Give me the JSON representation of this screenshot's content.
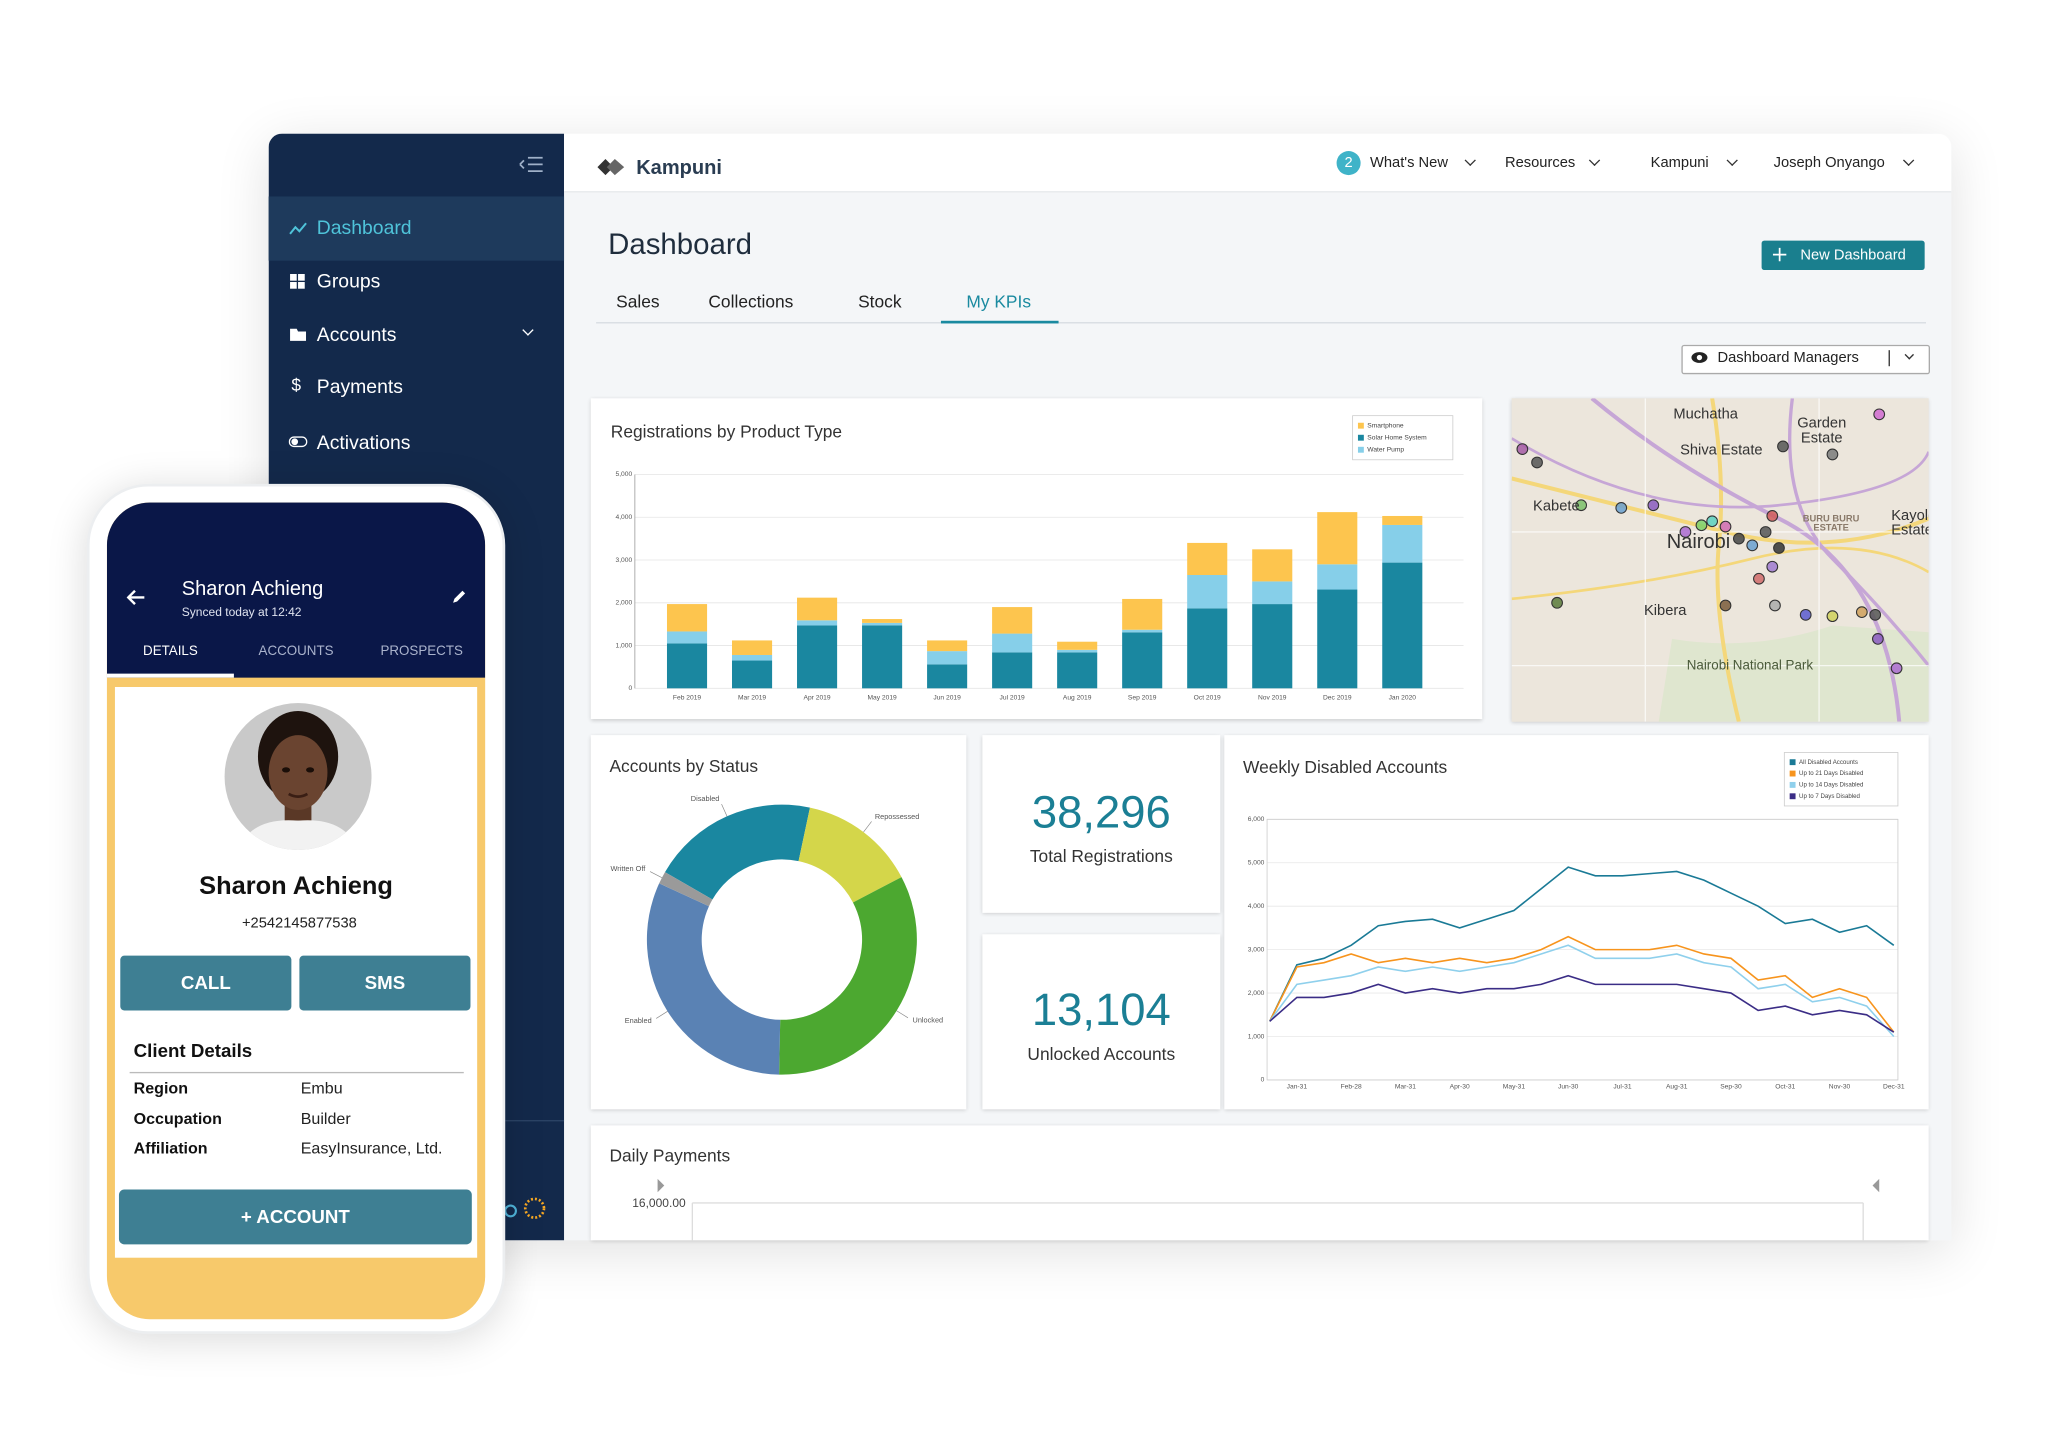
{
  "chart_data": [
    {
      "type": "bar",
      "title": "Registrations by Product Type",
      "categories": [
        "Feb 2019",
        "Mar 2019",
        "Apr 2019",
        "May 2019",
        "Jun 2019",
        "Jul 2019",
        "Aug 2019",
        "Sep 2019",
        "Oct 2019",
        "Nov 2019",
        "Dec 2019",
        "Jan 2020"
      ],
      "series": [
        {
          "name": "Smartphone",
          "color": "#fdc54e",
          "values": [
            640,
            340,
            530,
            90,
            250,
            620,
            190,
            720,
            750,
            750,
            1220,
            210
          ]
        },
        {
          "name": "Solar Home System",
          "color": "#1a87a0",
          "values": [
            1050,
            650,
            1470,
            1470,
            560,
            840,
            840,
            1310,
            1870,
            1970,
            2310,
            2940
          ]
        },
        {
          "name": "Water Pump",
          "color": "#86cfe9",
          "values": [
            280,
            130,
            120,
            60,
            310,
            440,
            60,
            60,
            780,
            530,
            590,
            880
          ]
        }
      ],
      "stack_order": [
        1,
        2,
        0
      ],
      "ylim": [
        0,
        5000
      ],
      "yticks": [
        0,
        {
          "value": 1000,
          "label": "1,000"
        },
        {
          "value": 2000,
          "label": "2,000"
        },
        {
          "value": 3000,
          "label": "3,000"
        },
        {
          "value": 4000,
          "label": "4,000"
        },
        {
          "value": 5000,
          "label": "5,000"
        }
      ],
      "grid": true,
      "legend": "upper-right"
    },
    {
      "type": "donut",
      "title": "Accounts by Status",
      "categories": [
        "Disabled",
        "Repossessed",
        "Unlocked",
        "Enabled",
        "Written Off"
      ],
      "values": [
        20,
        14,
        33,
        31.5,
        1.5
      ],
      "colors": [
        "#1a87a0",
        "#d4d64a",
        "#4ca830",
        "#5a82b4",
        "#9a9a9a"
      ]
    },
    {
      "type": "line",
      "title": "Weekly Disabled Accounts",
      "categories": [
        null,
        "Jan-31",
        null,
        "Feb-28",
        null,
        "Mar-31",
        null,
        "Apr-30",
        null,
        "May-31",
        null,
        "Jun-30",
        null,
        "Jul-31",
        null,
        "Aug-31",
        null,
        "Sep-30",
        null,
        "Oct-31",
        null,
        "Nov-30",
        null,
        "Dec-31"
      ],
      "series": [
        {
          "name": "All Disabled Accounts",
          "color": "#1a7a96",
          "values": [
            1350,
            2650,
            2800,
            3100,
            3550,
            3650,
            3700,
            3500,
            3700,
            3900,
            4400,
            4900,
            4700,
            4700,
            4750,
            4800,
            4600,
            4300,
            4000,
            3600,
            3700,
            3400,
            3550,
            3100
          ]
        },
        {
          "name": "Up to 21 Days Disabled",
          "color": "#f7941d",
          "values": [
            1350,
            2600,
            2700,
            2900,
            2700,
            2800,
            2700,
            2800,
            2700,
            2800,
            3000,
            3300,
            3000,
            3000,
            3000,
            3100,
            2900,
            2800,
            2300,
            2400,
            1900,
            2100,
            1900,
            1100
          ]
        },
        {
          "name": "Up to 14 Days Disabled",
          "color": "#8fd0ec",
          "values": [
            1350,
            2200,
            2300,
            2400,
            2600,
            2500,
            2600,
            2500,
            2600,
            2700,
            2900,
            3100,
            2800,
            2800,
            2800,
            2900,
            2700,
            2600,
            2100,
            2200,
            1800,
            1900,
            1700,
            1000
          ]
        },
        {
          "name": "Up to 7 Days Disabled",
          "color": "#3b2d86",
          "values": [
            1350,
            1900,
            1900,
            2000,
            2200,
            2000,
            2100,
            2000,
            2100,
            2100,
            2200,
            2400,
            2200,
            2200,
            2200,
            2200,
            2100,
            2000,
            1600,
            1700,
            1500,
            1600,
            1500,
            1100
          ]
        }
      ],
      "ylim": [
        0,
        6000
      ],
      "yticks": [
        0,
        {
          "value": 1000,
          "label": "1,000"
        },
        {
          "value": 2000,
          "label": "2,000"
        },
        {
          "value": 3000,
          "label": "3,000"
        },
        {
          "value": 4000,
          "label": "4,000"
        },
        {
          "value": 5000,
          "label": "5,000"
        },
        {
          "value": 6000,
          "label": "6,000"
        }
      ],
      "grid": true,
      "legend": "upper-right"
    }
  ],
  "app": {
    "sidebar": {
      "items": [
        "Dashboard",
        "Groups",
        "Accounts",
        "Payments",
        "Activations"
      ]
    },
    "header": {
      "brand": "Kampuni",
      "badge": "2",
      "menu": [
        "What's New",
        "Resources",
        "Kampuni",
        "Joseph Onyango"
      ]
    },
    "page": {
      "title": "Dashboard",
      "new_button": "New Dashboard",
      "tabs": [
        "Sales",
        "Collections",
        "Stock",
        "My KPIs"
      ],
      "managers": "Dashboard Managers"
    },
    "kpis": [
      {
        "value": "38,296",
        "label": "Total Registrations"
      },
      {
        "value": "13,104",
        "label": "Unlocked Accounts"
      }
    ],
    "map": {
      "labels": [
        "Muchatha",
        "Garden Estate",
        "Shiva Estate",
        "Kabete",
        "BURU BURU ESTATE",
        "Kayole Estate",
        "Nairobi",
        "Kibera",
        "Nairobi National Park"
      ]
    },
    "daily_payments": {
      "title": "Daily Payments",
      "tick": "16,000.00"
    },
    "phone": {
      "name": "Sharon Achieng",
      "synced": "Synced today at 12:42",
      "tabs": [
        "DETAILS",
        "ACCOUNTS",
        "PROSPECTS"
      ],
      "number": "+2542145877538",
      "buttons": [
        "CALL",
        "SMS"
      ],
      "section": "Client Details",
      "details": [
        [
          "Region",
          "Embu"
        ],
        [
          "Occupation",
          "Builder"
        ],
        [
          "Affiliation",
          "EasyInsurance, Ltd."
        ]
      ],
      "add_account": "+ ACCOUNT"
    }
  }
}
